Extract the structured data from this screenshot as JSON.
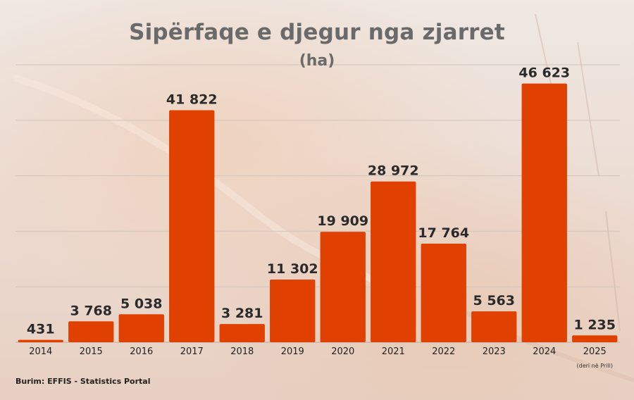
{
  "chart_data": {
    "type": "bar",
    "title": "Sipërfaqe e djegur nga zjarret",
    "subtitle": "(ha)",
    "categories": [
      "2014",
      "2015",
      "2016",
      "2017",
      "2018",
      "2019",
      "2020",
      "2021",
      "2022",
      "2023",
      "2024",
      "2025"
    ],
    "category_notes": [
      "",
      "",
      "",
      "",
      "",
      "",
      "",
      "",
      "",
      "",
      "",
      "(deri në Prill)"
    ],
    "values": [
      431,
      3768,
      5038,
      41822,
      3281,
      11302,
      19909,
      28972,
      17764,
      5563,
      46623,
      1235
    ],
    "value_labels": [
      "431",
      "3 768",
      "5 038",
      "41 822",
      "3 281",
      "11 302",
      "19 909",
      "28 972",
      "17 764",
      "5 563",
      "46 623",
      "1 235"
    ],
    "ylim": [
      0,
      50000
    ],
    "grid": true,
    "bar_color": "#e04000",
    "source": "Burim: EFFIS - Statistics Portal"
  }
}
